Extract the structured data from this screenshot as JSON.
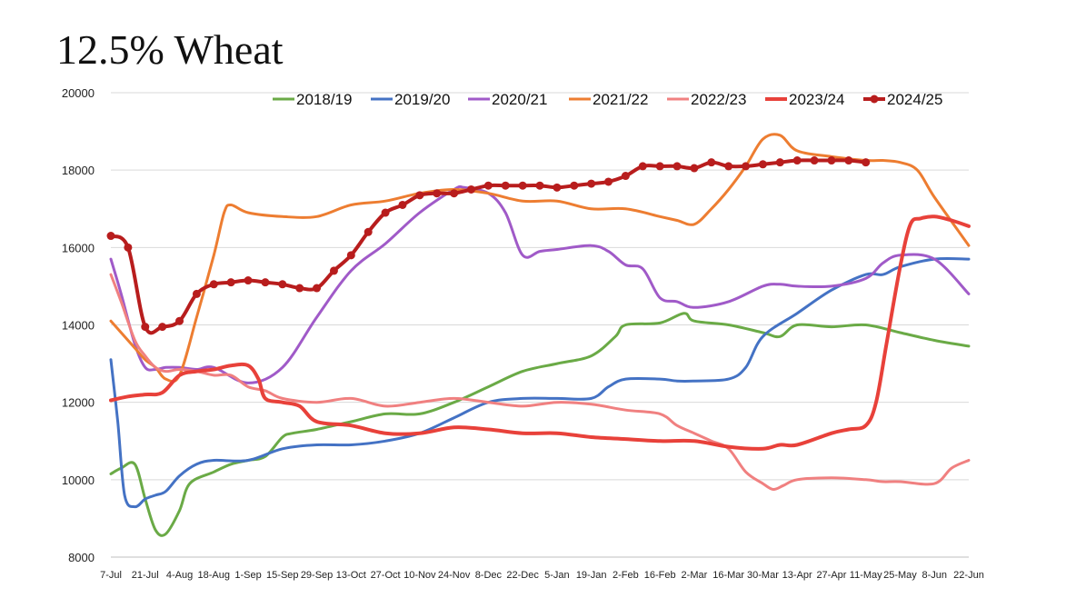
{
  "chart_data": {
    "type": "line",
    "title": "12.5% Wheat",
    "xlabel": "",
    "ylabel": "",
    "ylim": [
      8000,
      20000
    ],
    "yticks": [
      8000,
      10000,
      12000,
      14000,
      16000,
      18000,
      20000
    ],
    "grid": true,
    "legend_position": "top",
    "x_tick_labels": [
      "7-Jul",
      "21-Jul",
      "4-Aug",
      "18-Aug",
      "1-Sep",
      "15-Sep",
      "29-Sep",
      "13-Oct",
      "27-Oct",
      "10-Nov",
      "24-Nov",
      "8-Dec",
      "22-Dec",
      "5-Jan",
      "19-Jan",
      "2-Feb",
      "16-Feb",
      "2-Mar",
      "16-Mar",
      "30-Mar",
      "13-Apr",
      "27-Apr",
      "11-May",
      "25-May",
      "8-Jun",
      "22-Jun"
    ],
    "series": [
      {
        "name": "2018/19",
        "color": "#6aaa46",
        "width": 3,
        "markers": false,
        "x": [
          0,
          0.3,
          0.7,
          1,
          1.3,
          1.6,
          2,
          2.3,
          3,
          3.5,
          4,
          4.5,
          5,
          5.3,
          6,
          7,
          8,
          9,
          10,
          11,
          12,
          13,
          14,
          14.7,
          15,
          16,
          16.7,
          17,
          18,
          19,
          19.5,
          20,
          21,
          22,
          23,
          24,
          25
        ],
        "values": [
          10150,
          10300,
          10400,
          9500,
          8700,
          8600,
          9200,
          9900,
          10200,
          10400,
          10500,
          10600,
          11100,
          11200,
          11300,
          11500,
          11700,
          11700,
          12000,
          12400,
          12800,
          13000,
          13200,
          13700,
          14000,
          14050,
          14300,
          14100,
          14000,
          13800,
          13700,
          14000,
          13950,
          14000,
          13800,
          13600,
          13450
        ]
      },
      {
        "name": "2019/20",
        "color": "#4472c4",
        "width": 3,
        "markers": false,
        "x": [
          0,
          0.2,
          0.4,
          0.7,
          1,
          1.3,
          1.6,
          2,
          2.5,
          3,
          4,
          5,
          6,
          7,
          8,
          9,
          10,
          11,
          12,
          13,
          14,
          14.5,
          15,
          16,
          16.5,
          17,
          18,
          18.5,
          19,
          20,
          21,
          22,
          22.5,
          23,
          24,
          25
        ],
        "values": [
          13100,
          11500,
          9600,
          9300,
          9500,
          9600,
          9700,
          10100,
          10400,
          10500,
          10500,
          10800,
          10900,
          10900,
          11000,
          11200,
          11600,
          12000,
          12100,
          12100,
          12100,
          12400,
          12600,
          12600,
          12550,
          12550,
          12600,
          12900,
          13700,
          14300,
          14900,
          15300,
          15300,
          15500,
          15700,
          15700
        ]
      },
      {
        "name": "2020/21",
        "color": "#a05ac8",
        "width": 3,
        "markers": false,
        "x": [
          0,
          0.3,
          0.7,
          1,
          1.3,
          1.6,
          2,
          2.5,
          3,
          4,
          5,
          6,
          7,
          8,
          9,
          10,
          10.3,
          11,
          11.5,
          12,
          12.5,
          13,
          14,
          14.5,
          15,
          15.5,
          16,
          16.5,
          17,
          18,
          19,
          19.5,
          20,
          21,
          22,
          22.5,
          23,
          24,
          25
        ],
        "values": [
          15700,
          14800,
          13500,
          12900,
          12850,
          12900,
          12900,
          12850,
          12900,
          12500,
          12900,
          14200,
          15400,
          16100,
          16900,
          17500,
          17550,
          17400,
          16900,
          15800,
          15900,
          15950,
          16050,
          15900,
          15550,
          15450,
          14700,
          14600,
          14450,
          14600,
          15000,
          15050,
          15000,
          15000,
          15200,
          15600,
          15800,
          15700,
          14800
        ]
      },
      {
        "name": "2021/22",
        "color": "#ed7d31",
        "width": 3,
        "markers": false,
        "x": [
          0,
          0.3,
          0.7,
          1,
          1.3,
          1.6,
          2,
          2.5,
          3,
          3.3,
          3.5,
          4,
          5,
          6,
          7,
          8,
          9,
          10,
          11,
          12,
          13,
          14,
          15,
          16,
          16.5,
          17,
          17.5,
          18,
          18.5,
          19,
          19.5,
          20,
          21,
          22,
          22.5,
          23,
          23.5,
          24,
          25
        ],
        "values": [
          14100,
          13800,
          13400,
          13100,
          12900,
          12600,
          12700,
          14200,
          15800,
          16900,
          17100,
          16900,
          16800,
          16800,
          17100,
          17200,
          17400,
          17500,
          17400,
          17200,
          17200,
          17000,
          17000,
          16800,
          16700,
          16600,
          17000,
          17500,
          18100,
          18800,
          18900,
          18500,
          18350,
          18250,
          18250,
          18200,
          18000,
          17300,
          16050
        ]
      },
      {
        "name": "2022/23",
        "color": "#f08080",
        "width": 3,
        "markers": false,
        "x": [
          0,
          0.3,
          0.7,
          1,
          1.3,
          1.6,
          2,
          2.5,
          3,
          3.5,
          4,
          4.5,
          5,
          6,
          7,
          8,
          9,
          10,
          11,
          12,
          13,
          14,
          15,
          16,
          16.5,
          17,
          17.5,
          18,
          18.5,
          19,
          19.3,
          19.6,
          20,
          21,
          22,
          22.5,
          23,
          24,
          24.5,
          25
        ],
        "values": [
          15300,
          14600,
          13600,
          13200,
          12900,
          12800,
          12850,
          12800,
          12700,
          12700,
          12400,
          12300,
          12100,
          12000,
          12100,
          11900,
          12000,
          12100,
          12000,
          11900,
          12000,
          11950,
          11800,
          11700,
          11400,
          11200,
          11000,
          10800,
          10200,
          9900,
          9750,
          9850,
          10000,
          10050,
          10000,
          9950,
          9950,
          9900,
          10300,
          10500
        ]
      },
      {
        "name": "2023/24",
        "color": "#e8413a",
        "width": 4,
        "markers": false,
        "x": [
          0,
          0.5,
          1,
          1.5,
          2,
          2.5,
          3,
          3.5,
          4,
          4.3,
          4.5,
          5,
          5.5,
          6,
          7,
          8,
          9,
          10,
          11,
          12,
          13,
          14,
          15,
          16,
          17,
          18,
          19,
          19.5,
          20,
          21,
          21.5,
          22,
          22.3,
          22.6,
          23,
          23.3,
          23.6,
          24,
          24.5,
          25
        ],
        "values": [
          12050,
          12150,
          12200,
          12250,
          12700,
          12800,
          12850,
          12950,
          12950,
          12600,
          12100,
          12000,
          11900,
          11500,
          11400,
          11200,
          11200,
          11350,
          11300,
          11200,
          11200,
          11100,
          11050,
          11000,
          11000,
          10850,
          10800,
          10900,
          10900,
          11200,
          11300,
          11400,
          12000,
          13500,
          15500,
          16600,
          16750,
          16800,
          16700,
          16550
        ]
      },
      {
        "name": "2024/25",
        "color": "#b81d1d",
        "width": 4,
        "markers": true,
        "x": [
          0,
          0.5,
          1,
          1.5,
          2,
          2.5,
          3,
          3.5,
          4,
          4.5,
          5,
          5.5,
          6,
          6.5,
          7,
          7.5,
          8,
          8.5,
          9,
          9.5,
          10,
          10.5,
          11,
          11.5,
          12,
          12.5,
          13,
          13.5,
          14,
          14.5,
          15,
          15.5,
          16,
          16.5,
          17,
          17.5,
          18,
          18.5,
          19,
          19.5,
          20,
          20.5,
          21,
          21.5,
          22
        ],
        "values": [
          16300,
          16000,
          13950,
          13950,
          14100,
          14800,
          15050,
          15100,
          15150,
          15100,
          15050,
          14950,
          14950,
          15400,
          15800,
          16400,
          16900,
          17100,
          17350,
          17400,
          17400,
          17500,
          17600,
          17600,
          17600,
          17600,
          17550,
          17600,
          17650,
          17700,
          17850,
          18100,
          18100,
          18100,
          18050,
          18200,
          18100,
          18100,
          18150,
          18200,
          18250,
          18250,
          18250,
          18250,
          18200
        ]
      }
    ]
  }
}
